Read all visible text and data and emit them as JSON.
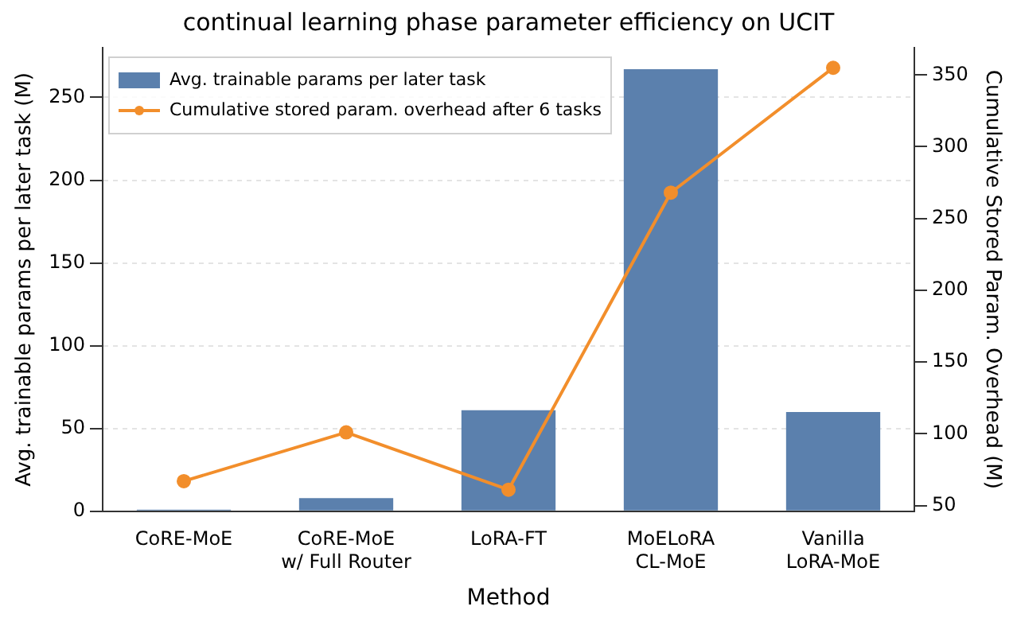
{
  "chart_data": {
    "type": "bar",
    "title": "continual learning phase parameter efficiency on UCIT",
    "xlabel": "Method",
    "ylabel": "Avg. trainable params per later task (M)",
    "y2label": "Cumulative Stored Param. Overhead (M)",
    "categories": [
      "CoRE-MoE",
      "CoRE-MoE\nw/ Full Router",
      "LoRA-FT",
      "MoELoRA\nCL-MoE",
      "Vanilla\nLoRA-MoE"
    ],
    "series": [
      {
        "name": "Avg. trainable params per later task",
        "color": "#5b80ad",
        "values": [
          1,
          8,
          61,
          267,
          60
        ]
      },
      {
        "name": "Cumulative stored param. overhead after 6 tasks",
        "type": "line",
        "axis": "y2",
        "color": "#f28e2b",
        "marker": "circle",
        "values": [
          67,
          101,
          61,
          268,
          355
        ]
      }
    ],
    "ylim": [
      0,
      280
    ],
    "yticks": [
      0,
      50,
      100,
      150,
      200,
      250
    ],
    "y2lim": [
      46,
      369
    ],
    "y2ticks": [
      50,
      100,
      150,
      200,
      250,
      300,
      350
    ],
    "grid": "y",
    "legend": "top left"
  }
}
